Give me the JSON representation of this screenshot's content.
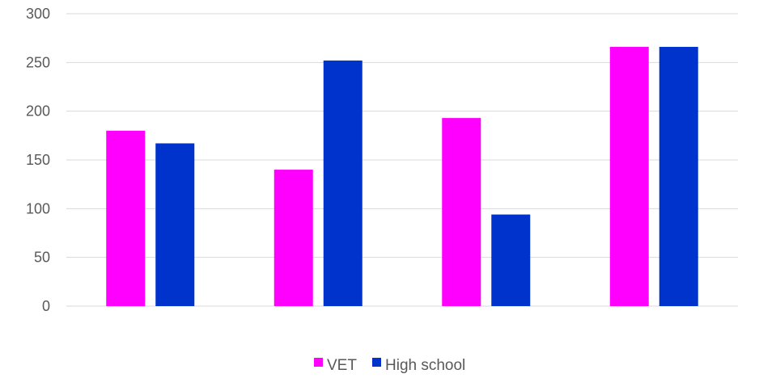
{
  "chart_data": {
    "type": "bar",
    "categories": [
      "",
      "",
      "",
      ""
    ],
    "series": [
      {
        "name": "VET",
        "color": "#FF00FF",
        "values": [
          180,
          140,
          193,
          266
        ]
      },
      {
        "name": "High school",
        "color": "#0033CC",
        "values": [
          167,
          252,
          94,
          266
        ]
      }
    ],
    "ylim": [
      0,
      300
    ],
    "yticks": [
      "0",
      "50",
      "100",
      "150",
      "200",
      "250",
      "300"
    ],
    "grid": true,
    "legend_position": "bottom"
  }
}
